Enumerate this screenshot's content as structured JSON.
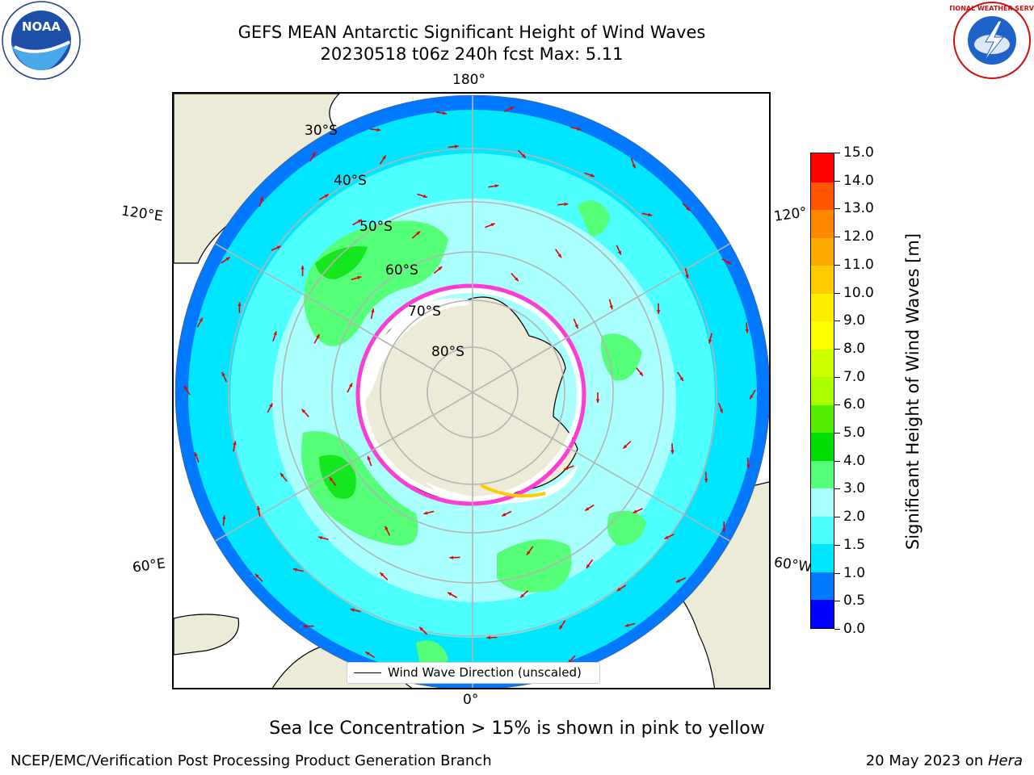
{
  "header": {
    "title_line1": "GEFS MEAN Antarctic Significant Height of Wind Waves",
    "title_line2": "20230518 t06z 240h fcst   Max: 5.11"
  },
  "map": {
    "projection": "south-polar-stereographic",
    "longitude_labels": {
      "top": "180°",
      "bottom": "0°",
      "upper_left": "120°E",
      "upper_right": "120°",
      "lower_left": "60°E",
      "lower_right": "60°W"
    },
    "latitude_labels": [
      "30°S",
      "40°S",
      "50°S",
      "60°S",
      "70°S",
      "80°S"
    ],
    "colors": {
      "land": "#ecebd8",
      "grid": "#b4b4b4",
      "sea_ice": "#ff3bd5",
      "arrows": "#e60000"
    }
  },
  "legend": {
    "label": "Wind Wave Direction (unscaled)"
  },
  "colorbar": {
    "title": "Significant Height of Wind Waves [m]",
    "ticks": [
      "0.0",
      "0.5",
      "1.0",
      "1.5",
      "2.0",
      "3.0",
      "4.0",
      "5.0",
      "6.0",
      "7.0",
      "8.0",
      "9.0",
      "10.0",
      "11.0",
      "12.0",
      "13.0",
      "14.0",
      "15.0"
    ],
    "colors": [
      "#0000ff",
      "#0078ff",
      "#00e6ff",
      "#4dffff",
      "#aaffff",
      "#55ff78",
      "#00dd00",
      "#55ee00",
      "#aaff00",
      "#ccff00",
      "#ffff00",
      "#ffee00",
      "#ffcc00",
      "#ffaa00",
      "#ff8800",
      "#ff5500",
      "#ff0000"
    ]
  },
  "logos": {
    "noaa": {
      "text": "NOAA",
      "icon": "noaa-logo"
    },
    "nws": {
      "text": "NATIONAL WEATHER SERVICE",
      "icon": "nws-logo"
    }
  },
  "footer": {
    "note": "Sea Ice Concentration > 15% is shown in pink to yellow",
    "left": "NCEP/EMC/Verification Post Processing Product Generation Branch",
    "right_prefix": "20 May 2023 on ",
    "right_machine": "Hera"
  }
}
